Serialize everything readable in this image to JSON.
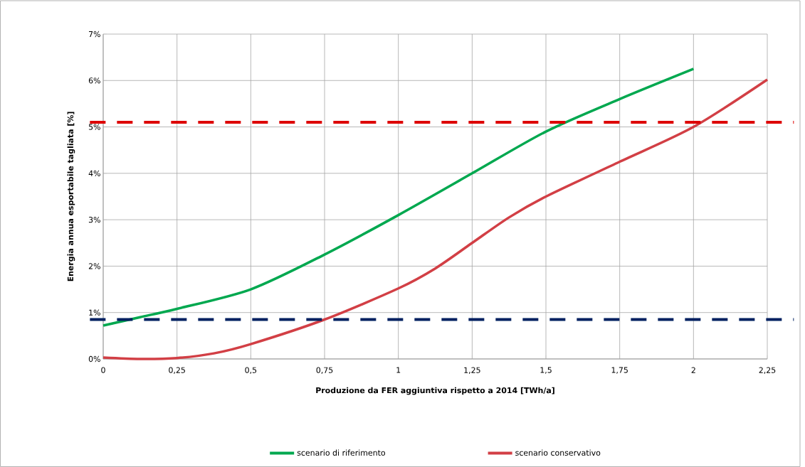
{
  "chart_data": {
    "type": "line",
    "xlabel": "Produzione da FER aggiuntiva rispetto a 2014 [TWh/a]",
    "ylabel": "Energia annua esportabile tagliata [%]",
    "series": [
      {
        "name": "scenario di riferimento",
        "color": "#00a84f",
        "x": [
          0,
          0.125,
          0.25,
          0.5,
          0.75,
          1,
          1.25,
          1.5,
          1.75,
          2
        ],
        "values": [
          0.72,
          0.9,
          1.08,
          1.5,
          2.25,
          3.1,
          4.0,
          4.9,
          5.6,
          6.25
        ]
      },
      {
        "name": "scenario conservativo",
        "color": "#d23f45",
        "x": [
          0,
          0.125,
          0.25,
          0.375,
          0.5,
          0.75,
          1,
          1.125,
          1.25,
          1.375,
          1.5,
          1.75,
          2,
          2.25
        ],
        "values": [
          0.03,
          0.0,
          0.02,
          0.12,
          0.32,
          0.85,
          1.52,
          1.95,
          2.5,
          3.05,
          3.5,
          4.25,
          5.0,
          6.02
        ]
      }
    ],
    "xlim": [
      0,
      2.25
    ],
    "ylim": [
      0,
      7
    ],
    "xticks": [
      0,
      {
        "value": 0.25,
        "label": "0,25"
      },
      {
        "value": 0.5,
        "label": "0,5"
      },
      {
        "value": 0.75,
        "label": "0,75"
      },
      1,
      {
        "value": 1.25,
        "label": "1,25"
      },
      {
        "value": 1.5,
        "label": "1,5"
      },
      {
        "value": 1.75,
        "label": "1,75"
      },
      2,
      {
        "value": 2.25,
        "label": "2,25"
      }
    ],
    "yticks": [
      {
        "value": 0,
        "label": "0%"
      },
      {
        "value": 1,
        "label": "1%"
      },
      {
        "value": 2,
        "label": "2%"
      },
      {
        "value": 3,
        "label": "3%"
      },
      {
        "value": 4,
        "label": "4%"
      },
      {
        "value": 5,
        "label": "5%"
      },
      {
        "value": 6,
        "label": "6%"
      },
      {
        "value": 7,
        "label": "7%"
      }
    ],
    "ref_lines": [
      {
        "axis": "y",
        "value": 5.1,
        "color": "#dd0000",
        "line_style": "dashed"
      },
      {
        "axis": "y",
        "value": 0.85,
        "color": "#002060",
        "line_style": "dashed"
      }
    ],
    "grid": true,
    "legend": "bottom",
    "marker": "none",
    "line_style": "solid"
  }
}
